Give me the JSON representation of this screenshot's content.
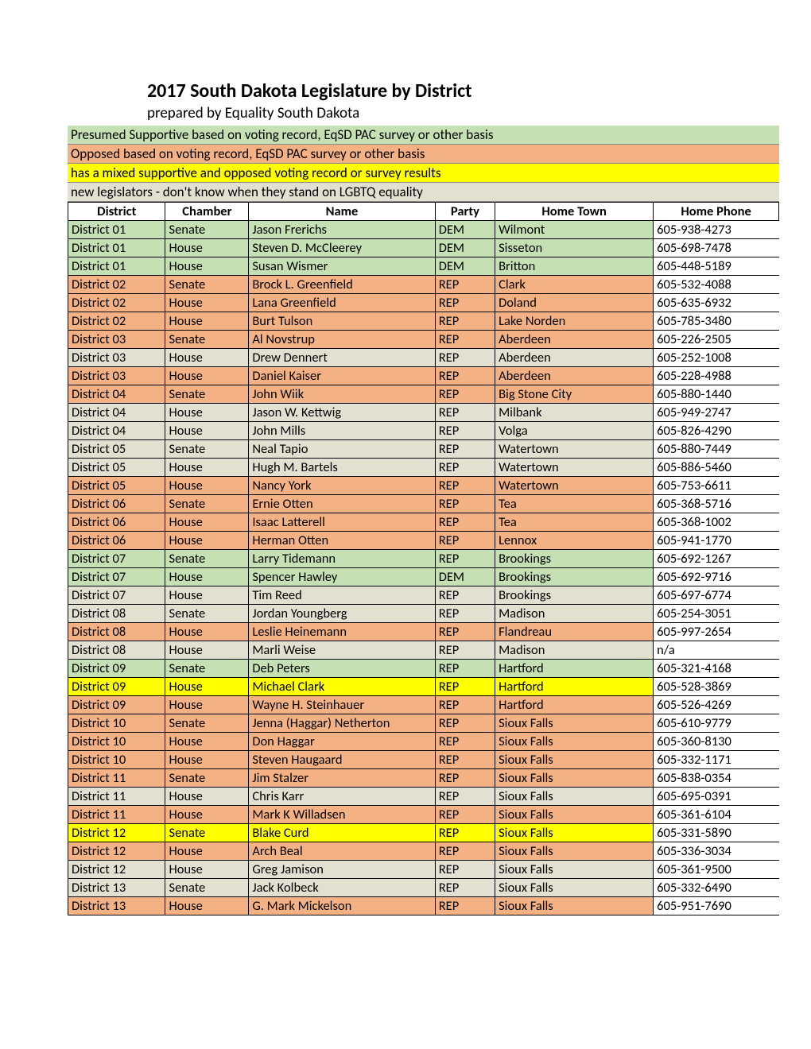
{
  "title": "2017 South Dakota Legislature by District",
  "subtitle": "prepared by Equality South Dakota",
  "colors": {
    "supportive": "#c5e0b3",
    "opposed": "#f4b183",
    "mixed": "#ffff00",
    "unknown": "#e2e0d0"
  },
  "legend": [
    {
      "text": "Presumed Supportive based on voting record, EqSD PAC survey or other basis",
      "class": "supportive"
    },
    {
      "text": "Opposed  based on voting record, EqSD PAC survey or other basis",
      "class": "opposed"
    },
    {
      "text": "has a mixed supportive and opposed voting record or survey results",
      "class": "mixed"
    },
    {
      "text": "new legislators - don't know when they stand on LGBTQ equality",
      "class": "unknown"
    }
  ],
  "columns": [
    "District",
    "Chamber",
    "Name",
    "Party",
    "Home Town",
    "Home Phone"
  ],
  "rows": [
    {
      "d": "District 01",
      "c": "Senate",
      "n": "Jason Frerichs",
      "p": "DEM",
      "t": "Wilmont",
      "ph": "605-938-4273",
      "cls": "supportive"
    },
    {
      "d": "District 01",
      "c": "House",
      "n": "Steven D. McCleerey",
      "p": "DEM",
      "t": "Sisseton",
      "ph": "605-698-7478",
      "cls": "supportive"
    },
    {
      "d": "District 01",
      "c": "House",
      "n": "Susan Wismer",
      "p": "DEM",
      "t": "Britton",
      "ph": "605-448-5189",
      "cls": "supportive"
    },
    {
      "d": "District 02",
      "c": "Senate",
      "n": "Brock L. Greenfield",
      "p": "REP",
      "t": "Clark",
      "ph": "605-532-4088",
      "cls": "opposed"
    },
    {
      "d": "District 02",
      "c": "House",
      "n": "Lana Greenfield",
      "p": "REP",
      "t": "Doland",
      "ph": "605-635-6932",
      "cls": "opposed"
    },
    {
      "d": "District 02",
      "c": "House",
      "n": "Burt Tulson",
      "p": "REP",
      "t": "Lake Norden",
      "ph": "605-785-3480",
      "cls": "opposed"
    },
    {
      "d": "District 03",
      "c": "Senate",
      "n": "Al Novstrup",
      "p": "REP",
      "t": "Aberdeen",
      "ph": "605-226-2505",
      "cls": "opposed"
    },
    {
      "d": "District 03",
      "c": "House",
      "n": "Drew Dennert",
      "p": "REP",
      "t": "Aberdeen",
      "ph": "605-252-1008",
      "cls": "unknown"
    },
    {
      "d": "District 03",
      "c": "House",
      "n": "Daniel Kaiser",
      "p": "REP",
      "t": "Aberdeen",
      "ph": "605-228-4988",
      "cls": "opposed"
    },
    {
      "d": "District 04",
      "c": "Senate",
      "n": "John Wiik",
      "p": "REP",
      "t": "Big Stone City",
      "ph": "605-880-1440",
      "cls": "opposed"
    },
    {
      "d": "District 04",
      "c": "House",
      "n": "Jason W. Kettwig",
      "p": "REP",
      "t": "Milbank",
      "ph": "605-949-2747",
      "cls": "unknown"
    },
    {
      "d": "District 04",
      "c": "House",
      "n": "John Mills",
      "p": "REP",
      "t": "Volga",
      "ph": "605-826-4290",
      "cls": "unknown"
    },
    {
      "d": "District 05",
      "c": "Senate",
      "n": "Neal Tapio",
      "p": "REP",
      "t": "Watertown",
      "ph": "605-880-7449",
      "cls": "unknown"
    },
    {
      "d": "District 05",
      "c": "House",
      "n": "Hugh M. Bartels",
      "p": "REP",
      "t": "Watertown",
      "ph": "605-886-5460",
      "cls": "unknown"
    },
    {
      "d": "District 05",
      "c": "House",
      "n": "Nancy York",
      "p": "REP",
      "t": "Watertown",
      "ph": "605-753-6611",
      "cls": "opposed"
    },
    {
      "d": "District 06",
      "c": "Senate",
      "n": "Ernie Otten",
      "p": "REP",
      "t": "Tea",
      "ph": "605-368-5716",
      "cls": "opposed"
    },
    {
      "d": "District 06",
      "c": "House",
      "n": "Isaac Latterell",
      "p": "REP",
      "t": "Tea",
      "ph": "605-368-1002",
      "cls": "opposed"
    },
    {
      "d": "District 06",
      "c": "House",
      "n": "Herman Otten",
      "p": "REP",
      "t": "Lennox",
      "ph": "605-941-1770",
      "cls": "opposed"
    },
    {
      "d": "District 07",
      "c": "Senate",
      "n": "Larry Tidemann",
      "p": "REP",
      "t": "Brookings",
      "ph": "605-692-1267",
      "cls": "supportive"
    },
    {
      "d": "District 07",
      "c": "House",
      "n": "Spencer Hawley",
      "p": "DEM",
      "t": "Brookings",
      "ph": "605-692-9716",
      "cls": "supportive"
    },
    {
      "d": "District 07",
      "c": "House",
      "n": "Tim Reed",
      "p": "REP",
      "t": "Brookings",
      "ph": "605-697-6774",
      "cls": "unknown"
    },
    {
      "d": "District 08",
      "c": "Senate",
      "n": "Jordan Youngberg",
      "p": "REP",
      "t": "Madison",
      "ph": "605-254-3051",
      "cls": "unknown"
    },
    {
      "d": "District 08",
      "c": "House",
      "n": "Leslie Heinemann",
      "p": "REP",
      "t": "Flandreau",
      "ph": "605-997-2654",
      "cls": "opposed"
    },
    {
      "d": "District 08",
      "c": "House",
      "n": "Marli Weise",
      "p": "REP",
      "t": "Madison",
      "ph": "n/a",
      "cls": "unknown"
    },
    {
      "d": "District 09",
      "c": "Senate",
      "n": "Deb Peters",
      "p": "REP",
      "t": "Hartford",
      "ph": "605-321-4168",
      "cls": "supportive"
    },
    {
      "d": "District 09",
      "c": "House",
      "n": "Michael Clark",
      "p": "REP",
      "t": "Hartford",
      "ph": "605-528-3869",
      "cls": "mixed"
    },
    {
      "d": "District 09",
      "c": "House",
      "n": "Wayne H. Steinhauer",
      "p": "REP",
      "t": "Hartford",
      "ph": "605-526-4269",
      "cls": "opposed"
    },
    {
      "d": "District 10",
      "c": "Senate",
      "n": "Jenna (Haggar) Netherton",
      "p": "REP",
      "t": "Sioux Falls",
      "ph": "605-610-9779",
      "cls": "opposed"
    },
    {
      "d": "District 10",
      "c": "House",
      "n": "Don Haggar",
      "p": "REP",
      "t": "Sioux Falls",
      "ph": "605-360-8130",
      "cls": "opposed"
    },
    {
      "d": "District 10",
      "c": "House",
      "n": "Steven Haugaard",
      "p": "REP",
      "t": "Sioux Falls",
      "ph": "605-332-1171",
      "cls": "opposed"
    },
    {
      "d": "District 11",
      "c": "Senate",
      "n": "Jim Stalzer",
      "p": "REP",
      "t": "Sioux Falls",
      "ph": "605-838-0354",
      "cls": "opposed"
    },
    {
      "d": "District 11",
      "c": "House",
      "n": "Chris Karr",
      "p": "REP",
      "t": "Sioux Falls",
      "ph": "605-695-0391",
      "cls": "unknown"
    },
    {
      "d": "District 11",
      "c": "House",
      "n": "Mark K Willadsen",
      "p": "REP",
      "t": "Sioux Falls",
      "ph": "605-361-6104",
      "cls": "opposed"
    },
    {
      "d": "District 12",
      "c": "Senate",
      "n": "Blake Curd",
      "p": "REP",
      "t": "Sioux Falls",
      "ph": "605-331-5890",
      "cls": "mixed"
    },
    {
      "d": "District 12",
      "c": "House",
      "n": "Arch Beal",
      "p": "REP",
      "t": "Sioux Falls",
      "ph": "605-336-3034",
      "cls": "opposed"
    },
    {
      "d": "District 12",
      "c": "House",
      "n": "Greg Jamison",
      "p": "REP",
      "t": "Sioux Falls",
      "ph": "605-361-9500",
      "cls": "unknown"
    },
    {
      "d": "District 13",
      "c": "Senate",
      "n": "Jack Kolbeck",
      "p": "REP",
      "t": "Sioux Falls",
      "ph": "605-332-6490",
      "cls": "unknown"
    },
    {
      "d": "District 13",
      "c": "House",
      "n": "G. Mark Mickelson",
      "p": "REP",
      "t": "Sioux Falls",
      "ph": "605-951-7690",
      "cls": "opposed"
    }
  ]
}
